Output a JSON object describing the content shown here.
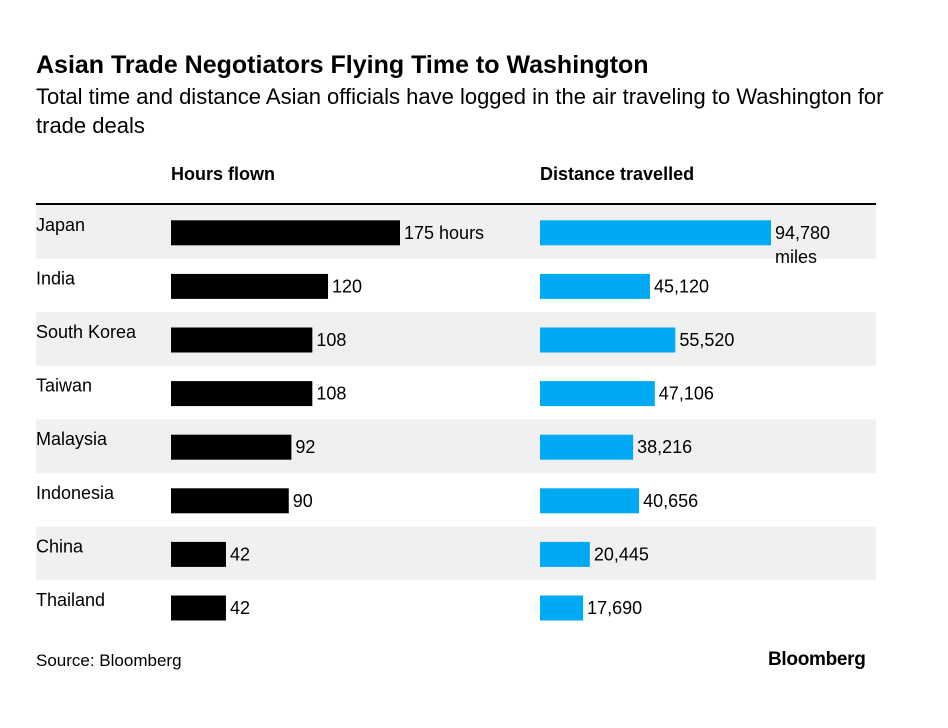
{
  "header": {
    "title": "Asian Trade Negotiators Flying Time to Washington",
    "subtitle": "Total time and distance Asian officials have logged in the air traveling to Washington for trade deals"
  },
  "footer": {
    "source": "Source: Bloomberg",
    "brand": "Bloomberg"
  },
  "colors": {
    "hours_bar": "#000000",
    "distance_bar": "#00a9f4",
    "band": "#f0f0f0"
  },
  "chart_data": {
    "type": "bar",
    "orientation": "horizontal",
    "categories": [
      "Japan",
      "India",
      "South Korea",
      "Taiwan",
      "Malaysia",
      "Indonesia",
      "China",
      "Thailand"
    ],
    "series": [
      {
        "name": "Hours flown",
        "values": [
          175,
          120,
          108,
          108,
          92,
          90,
          42,
          42
        ],
        "labels": [
          "175 hours",
          "120",
          "108",
          "108",
          "92",
          "90",
          "42",
          "42"
        ]
      },
      {
        "name": "Distance travelled",
        "values": [
          94780,
          45120,
          55520,
          47106,
          38216,
          40656,
          20445,
          17690
        ],
        "labels": [
          "94,780 miles",
          "45,120",
          "55,520",
          "47,106",
          "38,216",
          "40,656",
          "20,445",
          "17,690"
        ]
      }
    ],
    "grid": false,
    "legend": "none"
  }
}
